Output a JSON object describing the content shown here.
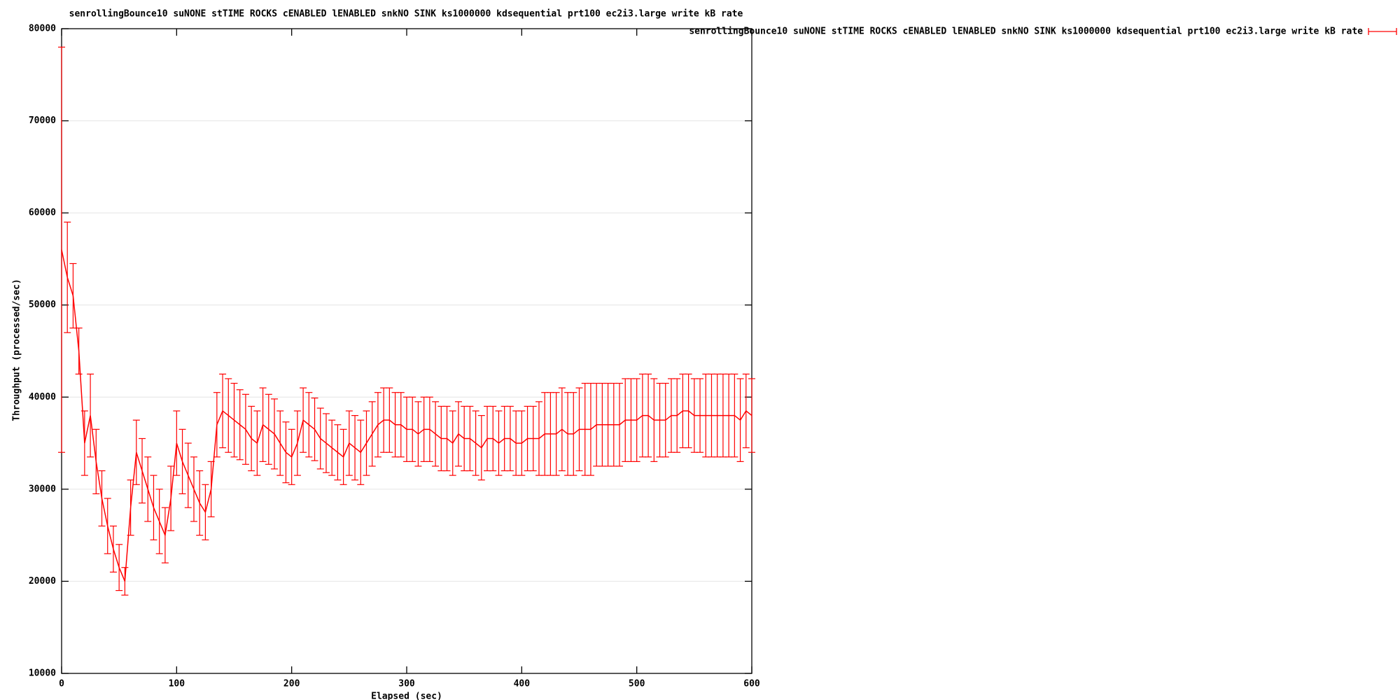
{
  "chart_data": {
    "type": "errorbar",
    "title": "senrollingBounce10 suNONE stTIME ROCKS cENABLED lENABLED snkNO SINK ks1000000 kdsequential prt100 ec2i3.large write kB rate",
    "x_label": "Elapsed (sec)",
    "y_label": "Throughput (processed/sec)",
    "xlim": [
      0,
      600
    ],
    "xticks": [
      0,
      100,
      200,
      300,
      400,
      500,
      600
    ],
    "ylim": [
      10000,
      80000
    ],
    "yticks": [
      10000,
      20000,
      30000,
      40000,
      50000,
      60000,
      70000,
      80000
    ],
    "grid": "y",
    "legend": "top-right",
    "x": [
      0,
      5,
      10,
      15,
      20,
      25,
      30,
      35,
      40,
      45,
      50,
      55,
      60,
      65,
      70,
      75,
      80,
      85,
      90,
      95,
      100,
      105,
      110,
      115,
      120,
      125,
      130,
      135,
      140,
      145,
      150,
      155,
      160,
      165,
      170,
      175,
      180,
      185,
      190,
      195,
      200,
      205,
      210,
      215,
      220,
      225,
      230,
      235,
      240,
      245,
      250,
      255,
      260,
      265,
      270,
      275,
      280,
      285,
      290,
      295,
      300,
      305,
      310,
      315,
      320,
      325,
      330,
      335,
      340,
      345,
      350,
      355,
      360,
      365,
      370,
      375,
      380,
      385,
      390,
      395,
      400,
      405,
      410,
      415,
      420,
      425,
      430,
      435,
      440,
      445,
      450,
      455,
      460,
      465,
      470,
      475,
      480,
      485,
      490,
      495,
      500,
      505,
      510,
      515,
      520,
      525,
      530,
      535,
      540,
      545,
      550,
      555,
      560,
      565,
      570,
      575,
      580,
      585,
      590,
      595,
      600
    ],
    "series": [
      {
        "name": "senrollingBounce10 suNONE stTIME ROCKS cENABLED lENABLED snkNO SINK ks1000000 kdsequential prt100 ec2i3.large write kB rate",
        "color": "#ff0000",
        "values": [
          56000,
          53000,
          51000,
          45000,
          35000,
          38000,
          33000,
          29000,
          26000,
          23500,
          21500,
          20000,
          28000,
          34000,
          32000,
          30000,
          28000,
          26500,
          25000,
          29000,
          35000,
          33000,
          31500,
          30000,
          28500,
          27500,
          30000,
          37000,
          38500,
          38000,
          37500,
          37000,
          36500,
          35500,
          35000,
          37000,
          36500,
          36000,
          35000,
          34000,
          33500,
          35000,
          37500,
          37000,
          36500,
          35500,
          35000,
          34500,
          34000,
          33500,
          35000,
          34500,
          34000,
          35000,
          36000,
          37000,
          37500,
          37500,
          37000,
          37000,
          36500,
          36500,
          36000,
          36500,
          36500,
          36000,
          35500,
          35500,
          35000,
          36000,
          35500,
          35500,
          35000,
          34500,
          35500,
          35500,
          35000,
          35500,
          35500,
          35000,
          35000,
          35500,
          35500,
          35500,
          36000,
          36000,
          36000,
          36500,
          36000,
          36000,
          36500,
          36500,
          36500,
          37000,
          37000,
          37000,
          37000,
          37000,
          37500,
          37500,
          37500,
          38000,
          38000,
          37500,
          37500,
          37500,
          38000,
          38000,
          38500,
          38500,
          38000,
          38000,
          38000,
          38000,
          38000,
          38000,
          38000,
          38000,
          37500,
          38500,
          38000
        ],
        "errors": [
          22000,
          6000,
          3500,
          2500,
          3500,
          4500,
          3500,
          3000,
          3000,
          2500,
          2500,
          1500,
          3000,
          3500,
          3500,
          3500,
          3500,
          3500,
          3000,
          3500,
          3500,
          3500,
          3500,
          3500,
          3500,
          3000,
          3000,
          3500,
          4000,
          4000,
          4000,
          3800,
          3800,
          3500,
          3500,
          4000,
          3800,
          3800,
          3500,
          3300,
          3000,
          3500,
          3500,
          3500,
          3400,
          3300,
          3200,
          3000,
          3000,
          3000,
          3500,
          3500,
          3500,
          3500,
          3500,
          3500,
          3500,
          3500,
          3500,
          3500,
          3500,
          3500,
          3500,
          3500,
          3500,
          3500,
          3500,
          3500,
          3500,
          3500,
          3500,
          3500,
          3500,
          3500,
          3500,
          3500,
          3500,
          3500,
          3500,
          3500,
          3500,
          3500,
          3500,
          4000,
          4500,
          4500,
          4500,
          4500,
          4500,
          4500,
          4500,
          5000,
          5000,
          4500,
          4500,
          4500,
          4500,
          4500,
          4500,
          4500,
          4500,
          4500,
          4500,
          4500,
          4000,
          4000,
          4000,
          4000,
          4000,
          4000,
          4000,
          4000,
          4500,
          4500,
          4500,
          4500,
          4500,
          4500,
          4500,
          4000,
          4000
        ]
      }
    ]
  }
}
